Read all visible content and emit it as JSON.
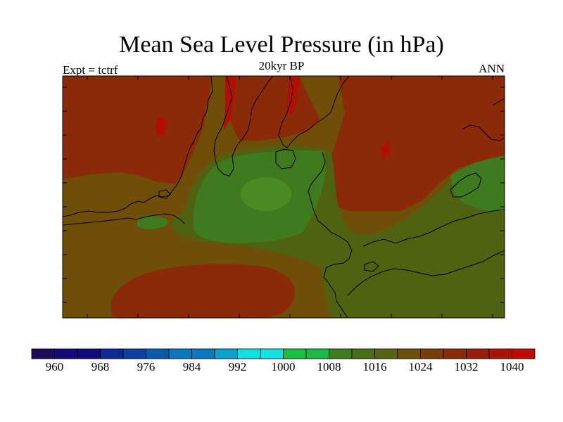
{
  "title": "Mean Sea Level Pressure (in hPa)",
  "subtitle": "20kyr BP",
  "left_label": "Expt = tctrf",
  "right_label": "ANN",
  "colorbar": {
    "colors": [
      "#1c0a5a",
      "#120a78",
      "#100a80",
      "#0c2a96",
      "#0b3fa0",
      "#0c5aae",
      "#0a78be",
      "#0a78be",
      "#0aa2cc",
      "#12e0e0",
      "#10e2e2",
      "#18c040",
      "#1cb848",
      "#3e7d22",
      "#4a6e14",
      "#566412",
      "#6e4e08",
      "#7a3e08",
      "#8a2c06",
      "#9a1e04",
      "#aa1404",
      "#c00a06"
    ],
    "ticks": [
      "960",
      "968",
      "976",
      "984",
      "992",
      "1000",
      "1008",
      "1016",
      "1024",
      "1032",
      "1040"
    ]
  },
  "map": {
    "palette": {
      "olive": "#4f6212",
      "brown": "#6e4e08",
      "rust": "#8a2a08",
      "red": "#b01004",
      "green": "#407a20",
      "lightgreen": "#4a8a22"
    }
  }
}
